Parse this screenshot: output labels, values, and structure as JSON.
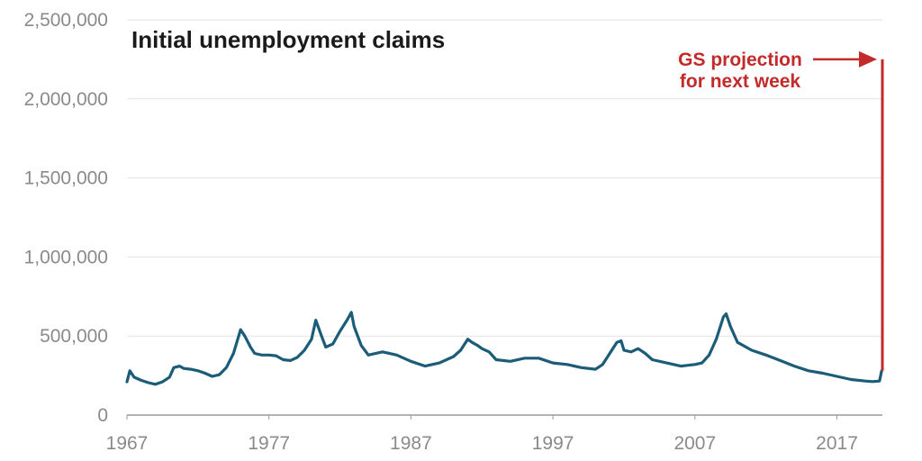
{
  "chart_data": {
    "type": "line",
    "title": "Initial unemployment claims",
    "xlabel": "",
    "ylabel": "",
    "xlim": [
      1967,
      2020.2
    ],
    "ylim": [
      0,
      2500000
    ],
    "x_ticks": [
      1967,
      1977,
      1987,
      1997,
      2007,
      2017
    ],
    "x_tick_labels": [
      "1967",
      "1977",
      "1987",
      "1997",
      "2007",
      "2017"
    ],
    "y_ticks": [
      0,
      500000,
      1000000,
      1500000,
      2000000,
      2500000
    ],
    "y_tick_labels": [
      "0",
      "500,000",
      "1,000,000",
      "1,500,000",
      "2,000,000",
      "2,500,000"
    ],
    "grid": true,
    "legend": "none",
    "series": [
      {
        "color": "#1b5c78",
        "x": [
          1967.0,
          1967.2,
          1967.5,
          1968.0,
          1968.5,
          1969.0,
          1969.5,
          1970.0,
          1970.3,
          1970.7,
          1971.0,
          1971.5,
          1972.0,
          1972.5,
          1973.0,
          1973.5,
          1974.0,
          1974.5,
          1975.0,
          1975.3,
          1975.7,
          1976.0,
          1976.5,
          1977.0,
          1977.5,
          1978.0,
          1978.5,
          1979.0,
          1979.5,
          1980.0,
          1980.3,
          1980.7,
          1981.0,
          1981.5,
          1982.0,
          1982.5,
          1982.8,
          1983.0,
          1983.5,
          1984.0,
          1985.0,
          1986.0,
          1987.0,
          1988.0,
          1989.0,
          1990.0,
          1990.5,
          1991.0,
          1991.3,
          1991.7,
          1992.0,
          1992.5,
          1993.0,
          1994.0,
          1995.0,
          1996.0,
          1997.0,
          1998.0,
          1999.0,
          2000.0,
          2000.5,
          2001.0,
          2001.5,
          2001.8,
          2002.0,
          2002.5,
          2003.0,
          2003.5,
          2004.0,
          2005.0,
          2006.0,
          2007.0,
          2007.5,
          2008.0,
          2008.5,
          2009.0,
          2009.2,
          2009.5,
          2010.0,
          2011.0,
          2012.0,
          2013.0,
          2014.0,
          2015.0,
          2016.0,
          2017.0,
          2018.0,
          2019.0,
          2019.5,
          2020.0,
          2020.15
        ],
        "y": [
          210000,
          280000,
          240000,
          220000,
          205000,
          195000,
          210000,
          240000,
          300000,
          310000,
          295000,
          290000,
          280000,
          265000,
          245000,
          255000,
          300000,
          390000,
          540000,
          500000,
          430000,
          390000,
          380000,
          380000,
          375000,
          350000,
          345000,
          365000,
          410000,
          480000,
          600000,
          500000,
          430000,
          450000,
          530000,
          600000,
          650000,
          560000,
          440000,
          380000,
          400000,
          380000,
          340000,
          310000,
          330000,
          370000,
          410000,
          480000,
          460000,
          440000,
          420000,
          400000,
          350000,
          340000,
          360000,
          360000,
          330000,
          320000,
          300000,
          290000,
          320000,
          390000,
          460000,
          470000,
          410000,
          400000,
          420000,
          390000,
          350000,
          330000,
          310000,
          320000,
          330000,
          380000,
          480000,
          620000,
          640000,
          560000,
          460000,
          410000,
          380000,
          345000,
          310000,
          280000,
          265000,
          245000,
          225000,
          215000,
          212000,
          215000,
          281000
        ]
      }
    ],
    "annotation": {
      "line1": "GS projection",
      "line2": "for next week",
      "x": 2020.2,
      "value": 2250000,
      "color": "#c32a2a"
    }
  }
}
